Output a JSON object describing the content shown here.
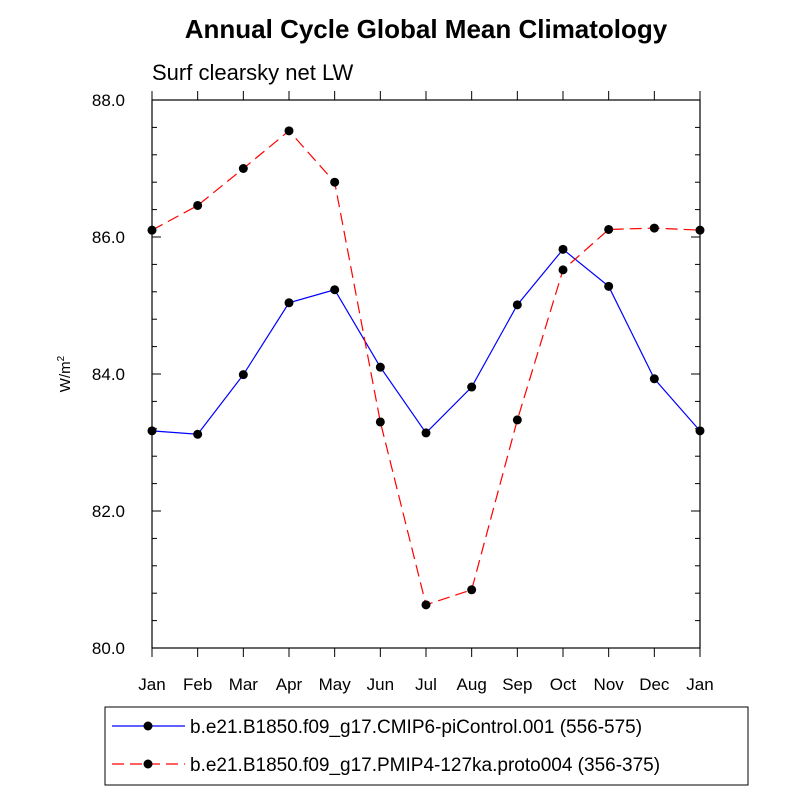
{
  "chart_data": {
    "type": "line",
    "title": "Annual Cycle Global Mean Climatology",
    "subtitle": "Surf clearsky net LW",
    "ylabel": "W/m",
    "ylabel_sup": "2",
    "xlabel": "",
    "categories": [
      "Jan",
      "Feb",
      "Mar",
      "Apr",
      "May",
      "Jun",
      "Jul",
      "Aug",
      "Sep",
      "Oct",
      "Nov",
      "Dec",
      "Jan"
    ],
    "ylim": [
      80.0,
      88.0
    ],
    "yticks": [
      80.0,
      82.0,
      84.0,
      86.0,
      88.0
    ],
    "ytick_labels": [
      "80.0",
      "82.0",
      "84.0",
      "86.0",
      "88.0"
    ],
    "legend_position": "bottom",
    "grid": false,
    "series": [
      {
        "name": "b.e21.B1850.f09_g17.CMIP6-piControl.001 (556-575)",
        "color": "#0000ff",
        "dash": "solid",
        "values": [
          83.17,
          83.12,
          83.99,
          85.04,
          85.23,
          84.1,
          83.14,
          83.81,
          85.01,
          85.82,
          85.28,
          83.93,
          83.17
        ]
      },
      {
        "name": "b.e21.B1850.f09_g17.PMIP4-127ka.proto004 (356-375)",
        "color": "#ff0000",
        "dash": "dashed",
        "values": [
          86.1,
          86.46,
          87.0,
          87.55,
          86.8,
          83.3,
          80.63,
          80.85,
          83.33,
          85.52,
          86.11,
          86.13,
          86.1
        ]
      }
    ]
  }
}
